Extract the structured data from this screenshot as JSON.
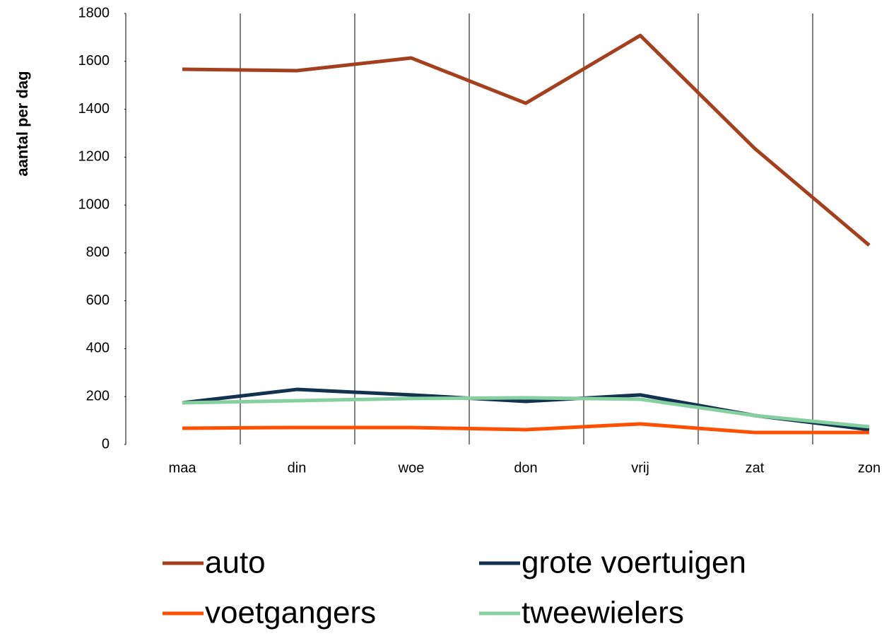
{
  "chart_data": {
    "type": "line",
    "ylabel": "aantal per dag",
    "categories": [
      "maa",
      "din",
      "woe",
      "don",
      "vrij",
      "zat",
      "zon"
    ],
    "series": [
      {
        "name": "auto",
        "color": "#a5401f",
        "values": [
          1567,
          1561,
          1614,
          1425,
          1708,
          1236,
          832
        ]
      },
      {
        "name": "grote voertuigen",
        "color": "#12324f",
        "values": [
          174,
          230,
          207,
          180,
          207,
          121,
          62
        ]
      },
      {
        "name": "voetgangers",
        "color": "#ff4f00",
        "values": [
          68,
          71,
          71,
          62,
          86,
          50,
          50
        ]
      },
      {
        "name": "tweewielers",
        "color": "#86cfa0",
        "values": [
          174,
          183,
          192,
          195,
          189,
          121,
          74
        ]
      }
    ],
    "ylim": [
      0,
      1800
    ],
    "yticks": [
      0,
      200,
      400,
      600,
      800,
      1000,
      1200,
      1400,
      1600,
      1800
    ],
    "grid": "x",
    "legend": "bottom"
  }
}
